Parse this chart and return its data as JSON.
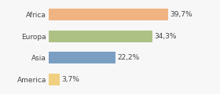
{
  "categories": [
    "Africa",
    "Europa",
    "Asia",
    "America"
  ],
  "values": [
    39.7,
    34.3,
    22.2,
    3.7
  ],
  "labels": [
    "39,7%",
    "34,3%",
    "22,2%",
    "3,7%"
  ],
  "bar_colors": [
    "#f0b482",
    "#aec185",
    "#7a9fc2",
    "#f0d080"
  ],
  "background_color": "#f7f7f7",
  "xlim": [
    0,
    48
  ],
  "label_fontsize": 6.5,
  "category_fontsize": 6.5,
  "bar_height": 0.55
}
